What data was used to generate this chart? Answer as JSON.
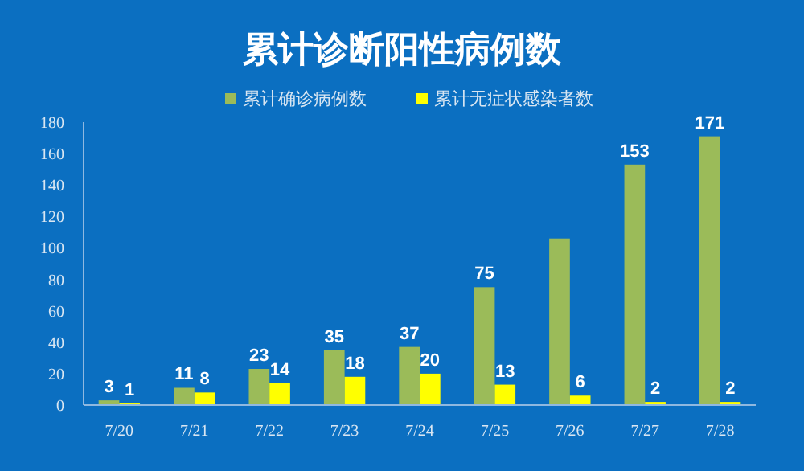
{
  "chart_data": {
    "type": "bar",
    "title": "累计诊断阳性病例数",
    "categories": [
      "7/20",
      "7/21",
      "7/22",
      "7/23",
      "7/24",
      "7/25",
      "7/26",
      "7/27",
      "7/28"
    ],
    "series": [
      {
        "name": "累计确诊病例数",
        "color": "#9bbb59",
        "values": [
          3,
          11,
          23,
          35,
          37,
          75,
          106,
          153,
          171
        ],
        "value_labels": [
          "3",
          "11",
          "23",
          "35",
          "37",
          "75",
          null,
          "153",
          "171"
        ]
      },
      {
        "name": "累计无症状感染者数",
        "color": "#ffff00",
        "values": [
          1,
          8,
          14,
          18,
          20,
          13,
          6,
          2,
          2
        ],
        "value_labels": [
          "1",
          "8",
          "14",
          "18",
          "20",
          "13",
          "6",
          "2",
          "2"
        ]
      }
    ],
    "ylim": [
      0,
      180
    ],
    "yticks": [
      0,
      20,
      40,
      60,
      80,
      100,
      120,
      140,
      160,
      180
    ],
    "grid": false,
    "legend": "top"
  }
}
